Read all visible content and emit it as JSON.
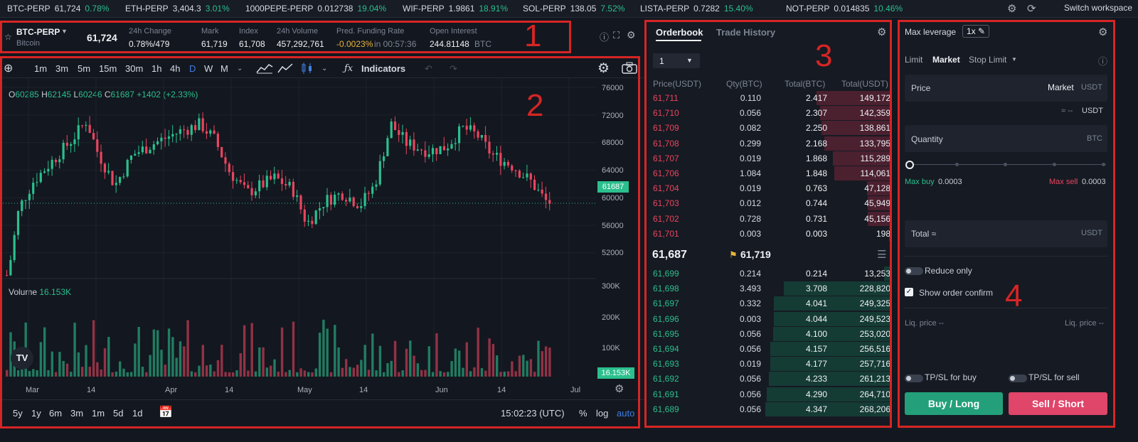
{
  "ticker": [
    {
      "symbol": "BTC-PERP",
      "price": "61,724",
      "change": "0.78%"
    },
    {
      "symbol": "ETH-PERP",
      "price": "3,404.3",
      "change": "3.01%"
    },
    {
      "symbol": "1000PEPE-PERP",
      "price": "0.012738",
      "change": "19.04%"
    },
    {
      "symbol": "WIF-PERP",
      "price": "1.9861",
      "change": "18.91%"
    },
    {
      "symbol": "SOL-PERP",
      "price": "138.05",
      "change": "7.52%"
    },
    {
      "symbol": "LISTA-PERP",
      "price": "0.7282",
      "change": "15.40%"
    },
    {
      "symbol": "NOT-PERP",
      "price": "0.014835",
      "change": "10.46%"
    }
  ],
  "workspace_label": "Switch workspace",
  "header": {
    "symbol": "BTC-PERP",
    "name": "Bitcoin",
    "last": "61,724",
    "change_label": "24h Change",
    "change_value": "0.78%/479",
    "mark_label": "Mark",
    "mark_value": "61,719",
    "index_label": "Index",
    "index_value": "61,708",
    "volume_label": "24h Volume",
    "volume_value": "457,292,761",
    "funding_label": "Pred. Funding Rate",
    "funding_value": "-0.0023%",
    "funding_in": "in 00:57:36",
    "oi_label": "Open Interest",
    "oi_value": "244.81148",
    "oi_unit": "BTC"
  },
  "annotations": [
    "1",
    "2",
    "3",
    "4"
  ],
  "chart_toolbar": {
    "intervals": [
      "1m",
      "3m",
      "5m",
      "15m",
      "30m",
      "1h",
      "4h",
      "D",
      "W",
      "M"
    ],
    "indicators_label": "Indicators"
  },
  "ohlc": {
    "o_label": "O",
    "o": "60285",
    "h_label": "H",
    "h": "62145",
    "l_label": "L",
    "l": "60246",
    "c_label": "C",
    "c": "61687",
    "chg": "+1402 (+2.33%)"
  },
  "volume_label": "Volume",
  "volume_value": "16.153K",
  "price_tag": "61687",
  "volume_tag": "16.153K",
  "chart_bottom": {
    "ranges": [
      "5y",
      "1y",
      "6m",
      "3m",
      "1m",
      "5d",
      "1d"
    ],
    "time": "15:02:23 (UTC)",
    "pct": "%",
    "log": "log",
    "auto": "auto"
  },
  "chart_data": {
    "type": "candlestick",
    "price_axis": [
      "76000",
      "72000",
      "68000",
      "64000",
      "60000",
      "56000",
      "52000"
    ],
    "volume_axis": [
      "300K",
      "200K",
      "100K"
    ],
    "x_labels": [
      "Mar",
      "14",
      "Apr",
      "14",
      "May",
      "14",
      "Jun",
      "14",
      "Jul"
    ],
    "ylim": [
      50000,
      78000
    ],
    "last_price": 61687
  },
  "orderbook": {
    "tabs": [
      "Orderbook",
      "Trade History"
    ],
    "grouping": "1",
    "columns": [
      "Price(USDT)",
      "Qty(BTC)",
      "Total(BTC)",
      "Total(USDT)"
    ],
    "asks": [
      [
        "61,711",
        "0.110",
        "2.417",
        "149,172"
      ],
      [
        "61,710",
        "0.056",
        "2.307",
        "142,359"
      ],
      [
        "61,709",
        "0.082",
        "2.250",
        "138,861"
      ],
      [
        "61,708",
        "0.299",
        "2.168",
        "133,795"
      ],
      [
        "61,707",
        "0.019",
        "1.868",
        "115,289"
      ],
      [
        "61,706",
        "1.084",
        "1.848",
        "114,061"
      ],
      [
        "61,704",
        "0.019",
        "0.763",
        "47,128"
      ],
      [
        "61,703",
        "0.012",
        "0.744",
        "45,949"
      ],
      [
        "61,702",
        "0.728",
        "0.731",
        "45,156"
      ],
      [
        "61,701",
        "0.003",
        "0.003",
        "198"
      ]
    ],
    "ask_depth": [
      0.59,
      0.56,
      0.55,
      0.53,
      0.46,
      0.45,
      0.19,
      0.18,
      0.18,
      0.01
    ],
    "last": "61,687",
    "mark": "61,719",
    "bids": [
      [
        "61,699",
        "0.214",
        "0.214",
        "13,253"
      ],
      [
        "61,698",
        "3.493",
        "3.708",
        "228,820"
      ],
      [
        "61,697",
        "0.332",
        "4.041",
        "249,325"
      ],
      [
        "61,696",
        "0.003",
        "4.044",
        "249,523"
      ],
      [
        "61,695",
        "0.056",
        "4.100",
        "253,020"
      ],
      [
        "61,694",
        "0.056",
        "4.157",
        "256,516"
      ],
      [
        "61,693",
        "0.019",
        "4.177",
        "257,716"
      ],
      [
        "61,692",
        "0.056",
        "4.233",
        "261,213"
      ],
      [
        "61,691",
        "0.056",
        "4.290",
        "264,710"
      ],
      [
        "61,689",
        "0.056",
        "4.347",
        "268,206"
      ]
    ],
    "bid_depth": [
      0.05,
      0.85,
      0.93,
      0.93,
      0.94,
      0.96,
      0.96,
      0.97,
      0.99,
      1.0
    ]
  },
  "order": {
    "max_leverage": "Max leverage",
    "leverage": "1x",
    "types": [
      "Limit",
      "Market",
      "Stop Limit"
    ],
    "price_label": "Price",
    "price_value": "Market",
    "price_unit": "USDT",
    "approx": "≈ --",
    "approx_unit": "USDT",
    "qty_label": "Quantity",
    "qty_unit": "BTC",
    "max_buy_label": "Max buy",
    "max_buy": "0.0003",
    "max_sell_label": "Max sell",
    "max_sell": "0.0003",
    "total_label": "Total ≈",
    "total_unit": "USDT",
    "reduce_only": "Reduce only",
    "show_confirm": "Show order confirm",
    "liq_left": "Liq. price --",
    "liq_right": "Liq. price --",
    "tpsl_buy": "TP/SL for buy",
    "tpsl_sell": "TP/SL for sell",
    "buy": "Buy / Long",
    "sell": "Sell / Short"
  },
  "colors": {
    "up": "#2bbf8e",
    "down": "#e8455f",
    "bg": "#13171f",
    "frame": "#d62525"
  }
}
